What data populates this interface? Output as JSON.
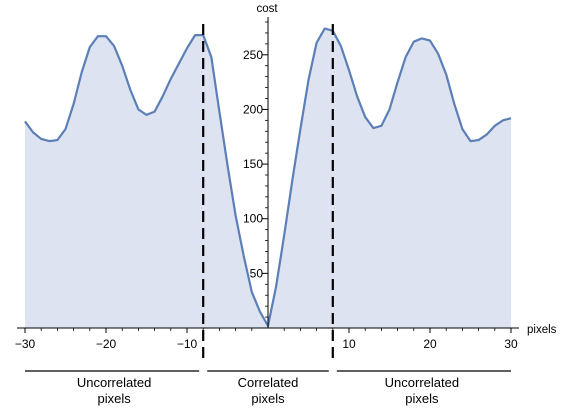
{
  "chart_data": {
    "type": "area",
    "xlabel": "pixels",
    "ylabel": "cost",
    "xlim": [
      -30,
      30
    ],
    "ylim": [
      0,
      280
    ],
    "x_ticks": [
      -30,
      -20,
      -10,
      10,
      20,
      30
    ],
    "y_ticks": [
      50,
      100,
      150,
      200,
      250
    ],
    "colors": {
      "line": "#5b7fb6",
      "fill": "#dde3f0",
      "marker": "#000000"
    },
    "series": [
      {
        "x": [
          -30,
          -29,
          -28,
          -27,
          -26,
          -25,
          -24,
          -23,
          -22,
          -21,
          -20,
          -19,
          -18,
          -17,
          -16,
          -15,
          -14,
          -13,
          -12,
          -11,
          -10,
          -9,
          -8,
          -7,
          -6,
          -5,
          -4,
          -3,
          -2,
          -1,
          0,
          1,
          2,
          3,
          4,
          5,
          6,
          7,
          8,
          9,
          10,
          11,
          12,
          13,
          14,
          15,
          16,
          17,
          18,
          19,
          20,
          21,
          22,
          23,
          24,
          25,
          26,
          27,
          28,
          29,
          30
        ],
        "y": [
          189,
          179,
          173,
          171,
          172,
          182,
          205,
          234,
          257,
          267,
          267,
          258,
          240,
          218,
          200,
          195,
          198,
          212,
          228,
          242,
          256,
          268,
          268,
          248,
          198,
          149,
          103,
          66,
          33,
          15,
          2,
          38,
          85,
          135,
          182,
          227,
          261,
          274,
          272,
          258,
          236,
          212,
          193,
          183,
          185,
          200,
          225,
          248,
          262,
          265,
          263,
          251,
          232,
          205,
          182,
          171,
          172,
          177,
          185,
          190,
          192
        ]
      }
    ],
    "vlines": [
      -8,
      8
    ],
    "regions": [
      {
        "label": [
          "Uncorrelated",
          "pixels"
        ],
        "from": -30,
        "to": -8
      },
      {
        "label": [
          "Correlated",
          "pixels"
        ],
        "from": -8,
        "to": 8
      },
      {
        "label": [
          "Uncorrelated",
          "pixels"
        ],
        "from": 8,
        "to": 30
      }
    ]
  }
}
